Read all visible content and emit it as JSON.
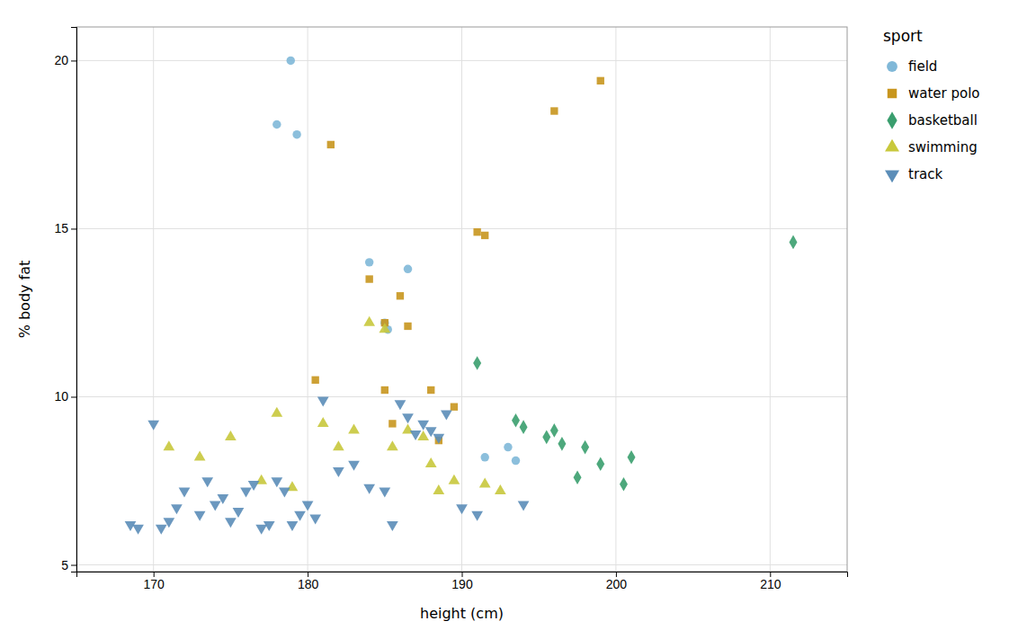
{
  "chart_data": {
    "type": "scatter",
    "xlabel": "height (cm)",
    "ylabel": "% body fat",
    "xlim": [
      165,
      215
    ],
    "ylim": [
      4.8,
      21.0
    ],
    "xticks": [
      170,
      180,
      190,
      200,
      210
    ],
    "yticks": [
      5,
      10,
      15,
      20
    ],
    "grid": true,
    "legend": "right",
    "legend_title": "sport",
    "series": [
      {
        "name": "field",
        "color": "#80B8D8",
        "marker": "circle",
        "x": [
          178.9,
          178.0,
          179.3,
          184.0,
          186.5,
          185.0,
          185.2,
          191.5,
          193.0,
          193.5
        ],
        "values": [
          20.0,
          18.1,
          17.8,
          14.0,
          13.8,
          12.2,
          12.0,
          8.2,
          8.5,
          8.1
        ]
      },
      {
        "name": "water polo",
        "color": "#C8961E",
        "marker": "square",
        "x": [
          181.5,
          184.0,
          185.0,
          186.5,
          185.0,
          180.5,
          188.0,
          185.5,
          186.0,
          188.5,
          189.5,
          191.0,
          191.5,
          196.0,
          199.0
        ],
        "values": [
          17.5,
          13.5,
          12.2,
          12.1,
          10.2,
          10.5,
          10.2,
          9.2,
          13.0,
          8.7,
          9.7,
          14.9,
          14.8,
          18.5,
          19.4
        ]
      },
      {
        "name": "basketball",
        "color": "#3A9E6E",
        "marker": "diamond",
        "x": [
          191.0,
          193.5,
          194.0,
          196.0,
          195.5,
          196.5,
          198.0,
          197.5,
          199.0,
          200.5,
          201.0,
          211.5
        ],
        "values": [
          11.0,
          9.3,
          9.1,
          9.0,
          8.8,
          8.6,
          8.5,
          7.6,
          8.0,
          7.4,
          8.2,
          14.6
        ]
      },
      {
        "name": "swimming",
        "color": "#C8C83C",
        "marker": "triangle-up",
        "x": [
          171.0,
          173.0,
          175.0,
          177.0,
          178.0,
          179.0,
          181.0,
          182.0,
          183.0,
          184.0,
          185.0,
          185.5,
          186.5,
          187.5,
          188.0,
          188.5,
          189.5,
          191.5,
          192.5
        ],
        "values": [
          8.5,
          8.2,
          8.8,
          7.5,
          9.5,
          7.3,
          9.2,
          8.5,
          9.0,
          12.2,
          12.0,
          8.5,
          9.0,
          8.8,
          8.0,
          7.2,
          7.5,
          7.4,
          7.2
        ]
      },
      {
        "name": "track",
        "color": "#5B8DB8",
        "marker": "triangle-down",
        "x": [
          168.5,
          169.0,
          170.0,
          170.5,
          171.0,
          171.5,
          172.0,
          173.0,
          173.5,
          174.0,
          174.5,
          175.0,
          175.5,
          176.0,
          176.5,
          177.0,
          177.5,
          178.0,
          178.5,
          179.0,
          179.5,
          180.0,
          180.5,
          181.0,
          182.0,
          183.0,
          184.0,
          185.0,
          185.5,
          186.0,
          186.5,
          187.0,
          187.5,
          188.0,
          188.5,
          189.0,
          190.0,
          191.0,
          194.0
        ],
        "values": [
          6.2,
          6.1,
          9.2,
          6.1,
          6.3,
          6.7,
          7.2,
          6.5,
          7.5,
          6.8,
          7.0,
          6.3,
          6.6,
          7.2,
          7.4,
          6.1,
          6.2,
          7.5,
          7.2,
          6.2,
          6.5,
          6.8,
          6.4,
          9.9,
          7.8,
          8.0,
          7.3,
          7.2,
          6.2,
          9.8,
          9.4,
          8.9,
          9.2,
          9.0,
          8.8,
          9.5,
          6.7,
          6.5,
          6.8
        ]
      }
    ]
  }
}
